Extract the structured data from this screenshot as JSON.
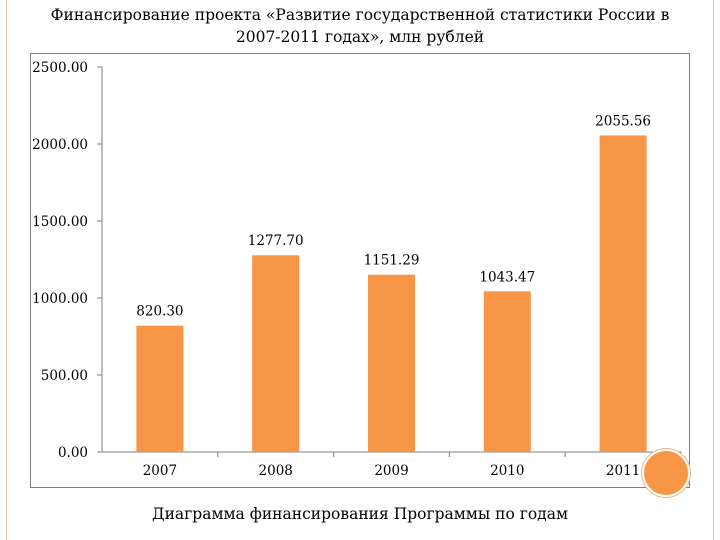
{
  "title": "Финансирование проекта «Развитие государственной статистики России в 2007-2011 годах», млн рублей",
  "caption": "Диаграмма финансирования Программы по годам",
  "chart_data": {
    "type": "bar",
    "categories": [
      "2007",
      "2008",
      "2009",
      "2010",
      "2011"
    ],
    "values": [
      820.3,
      1277.7,
      1151.29,
      1043.47,
      2055.56
    ],
    "data_labels": [
      "820.30",
      "1277.70",
      "1151.29",
      "1043.47",
      "2055.56"
    ],
    "y_ticks": [
      "0.00",
      "500.00",
      "1000.00",
      "1500.00",
      "2000.00",
      "2500.00"
    ],
    "ylim": [
      0,
      2500
    ],
    "grid": false,
    "legend": "none",
    "bar_color": "#f79646"
  }
}
